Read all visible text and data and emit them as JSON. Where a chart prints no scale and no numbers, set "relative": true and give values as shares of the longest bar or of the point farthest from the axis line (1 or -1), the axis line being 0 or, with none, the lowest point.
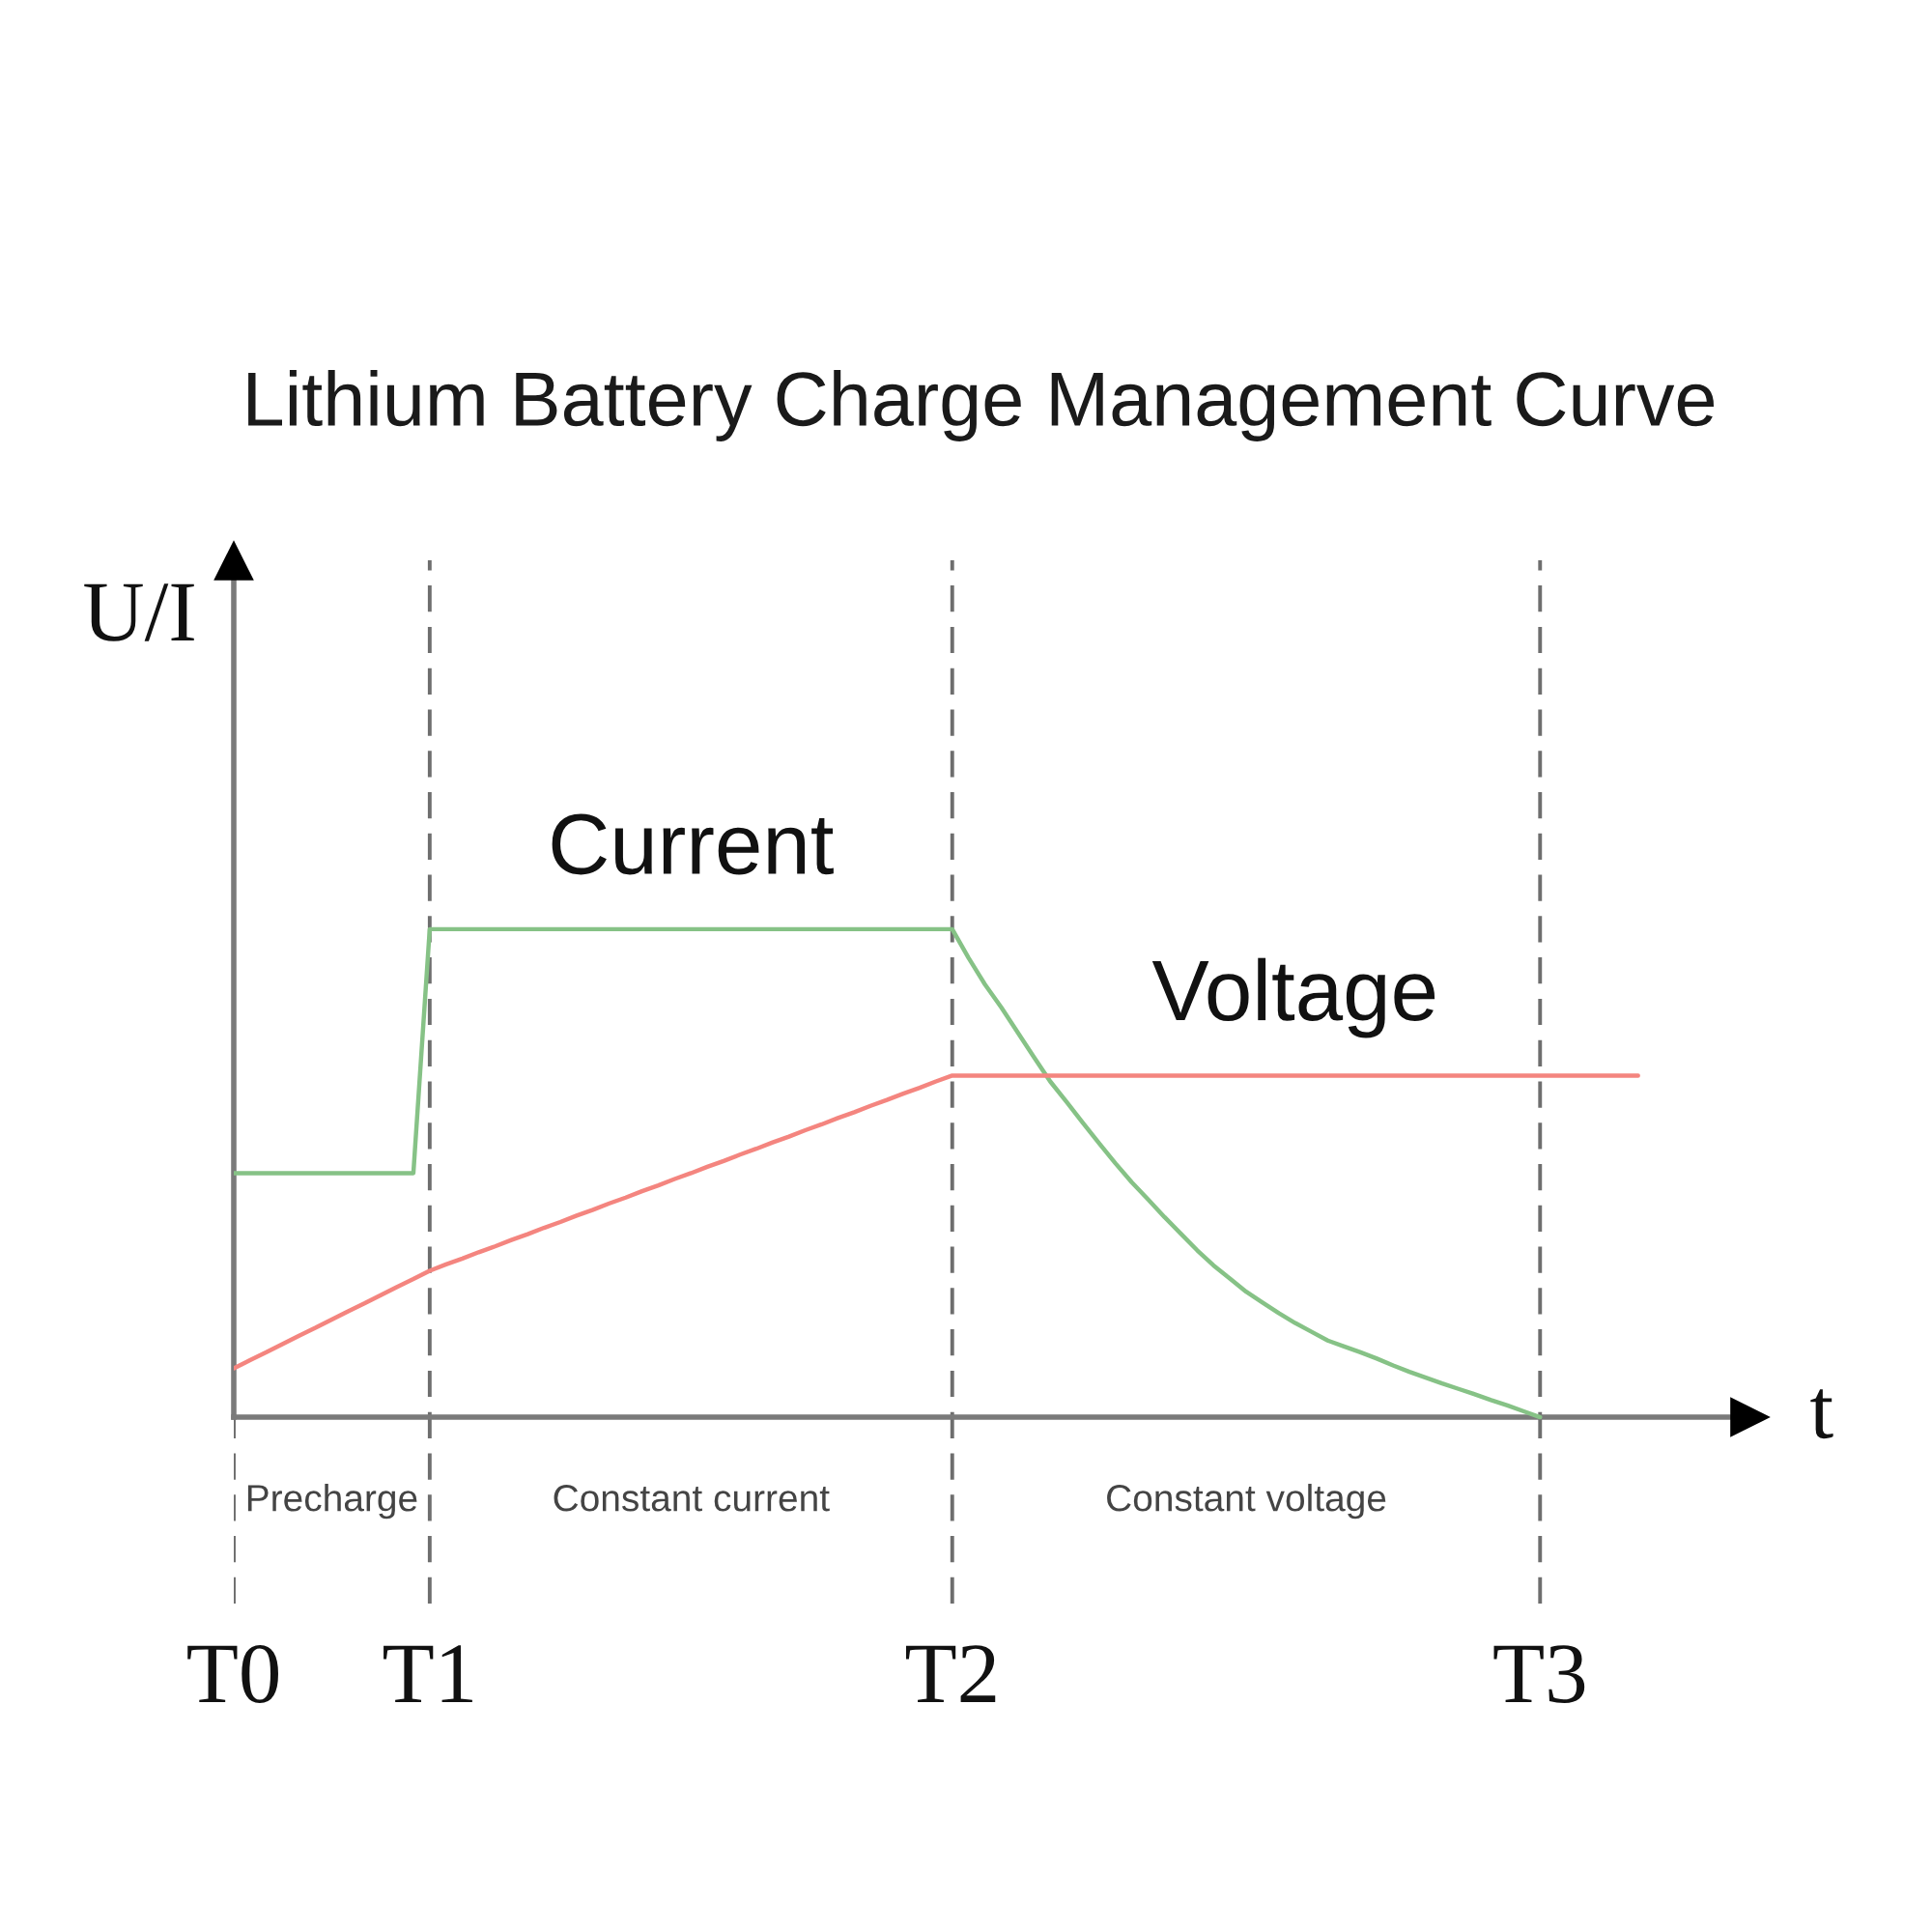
{
  "chart_data": {
    "type": "line",
    "title": "Lithium Battery Charge Management Curve",
    "xlabel": "t",
    "ylabel": "U/I",
    "relative": true,
    "categories": [
      "T0",
      null,
      null,
      null,
      null,
      null,
      null,
      null,
      null,
      null,
      null,
      null,
      "T1",
      null,
      null,
      null,
      null,
      null,
      null,
      null,
      null,
      null,
      null,
      null,
      null,
      null,
      null,
      null,
      null,
      null,
      null,
      null,
      null,
      null,
      null,
      null,
      null,
      null,
      null,
      null,
      null,
      null,
      null,
      null,
      "T2",
      null,
      null,
      null,
      null,
      null,
      null,
      null,
      null,
      null,
      null,
      null,
      null,
      null,
      null,
      null,
      null,
      null,
      null,
      null,
      null,
      null,
      null,
      null,
      null,
      null,
      null,
      null,
      null,
      null,
      null,
      null,
      null,
      null,
      null,
      null,
      "T3",
      null,
      null,
      null,
      null,
      null,
      null
    ],
    "series": [
      {
        "name": "Current",
        "color": "#86c286",
        "values": [
          0.5,
          0.5,
          0.5,
          0.5,
          0.5,
          0.5,
          0.5,
          0.5,
          0.5,
          0.5,
          0.5,
          0.5,
          1,
          1,
          1,
          1,
          1,
          1,
          1,
          1,
          1,
          1,
          1,
          1,
          1,
          1,
          1,
          1,
          1,
          1,
          1,
          1,
          1,
          1,
          1,
          1,
          1,
          1,
          1,
          1,
          1,
          1,
          1,
          1,
          1,
          0.941,
          0.887,
          0.84,
          0.789,
          0.738,
          0.688,
          0.646,
          0.603,
          0.561,
          0.52,
          0.481,
          0.446,
          0.41,
          0.376,
          0.342,
          0.311,
          0.284,
          0.257,
          0.235,
          0.213,
          0.193,
          0.175,
          0.157,
          0.145,
          0.133,
          0.12,
          0.106,
          0.093,
          0.081,
          0.069,
          0.058,
          0.047,
          0.035,
          0.024,
          0.012,
          0,
          null,
          null,
          null,
          null,
          null,
          null
        ]
      },
      {
        "name": "Voltage",
        "color": "#f4857f",
        "values": [
          0.1,
          0.117,
          0.133,
          0.15,
          0.167,
          0.183,
          0.2,
          0.217,
          0.233,
          0.25,
          0.267,
          0.283,
          0.3,
          0.313,
          0.325,
          0.338,
          0.35,
          0.363,
          0.375,
          0.388,
          0.4,
          0.413,
          0.425,
          0.438,
          0.45,
          0.463,
          0.475,
          0.488,
          0.5,
          0.513,
          0.525,
          0.538,
          0.55,
          0.563,
          0.575,
          0.588,
          0.6,
          0.613,
          0.625,
          0.638,
          0.65,
          0.663,
          0.675,
          0.688,
          0.7,
          0.7,
          0.7,
          0.7,
          0.7,
          0.7,
          0.7,
          0.7,
          0.7,
          0.7,
          0.7,
          0.7,
          0.7,
          0.7,
          0.7,
          0.7,
          0.7,
          0.7,
          0.7,
          0.7,
          0.7,
          0.7,
          0.7,
          0.7,
          0.7,
          0.7,
          0.7,
          0.7,
          0.7,
          0.7,
          0.7,
          0.7,
          0.7,
          0.7,
          0.7,
          0.7,
          0.7,
          0.7,
          0.7,
          0.7,
          0.7,
          0.7,
          0.7
        ]
      }
    ],
    "annotations": [
      "Precharge",
      "Constant current",
      "Constant voltage"
    ],
    "grid": "x",
    "legend": false,
    "marker": "none",
    "line_style": "solid"
  }
}
